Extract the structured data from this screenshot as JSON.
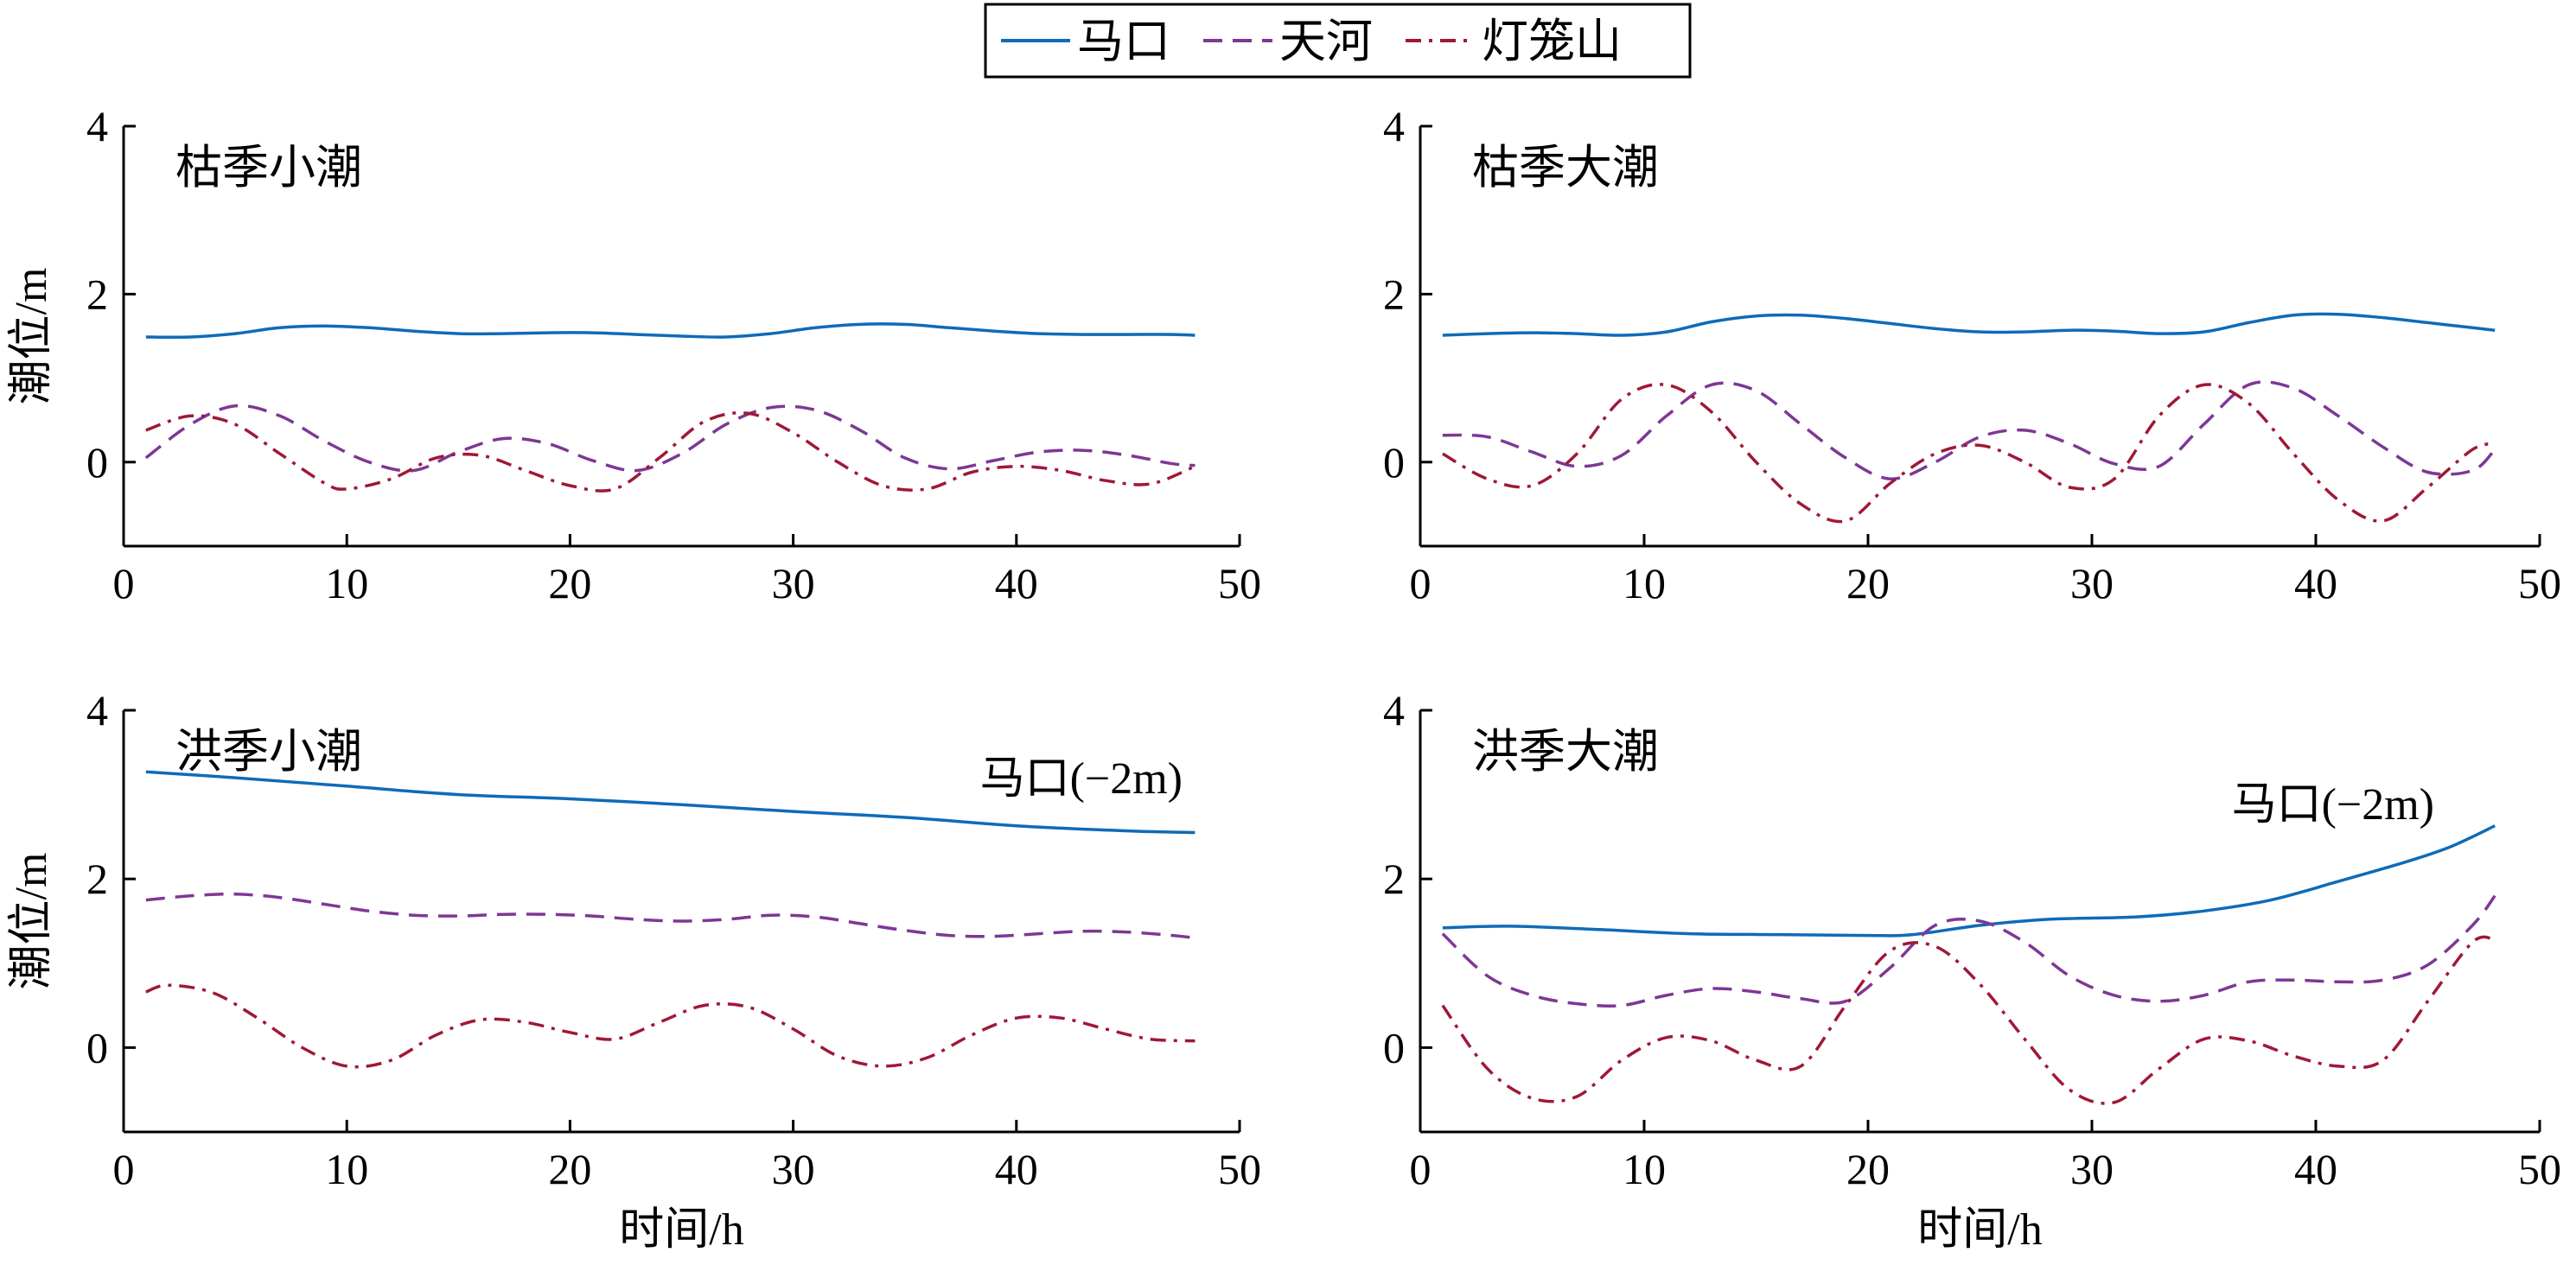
{
  "legend": {
    "items": [
      {
        "label": "马口",
        "color": "#0e6bb8",
        "dash": "solid"
      },
      {
        "label": "天河",
        "color": "#7e3795",
        "dash": "dashed"
      },
      {
        "label": "灯笼山",
        "color": "#a01836",
        "dash": "dashdot"
      }
    ]
  },
  "chart_data": [
    {
      "type": "line",
      "title": "枯季小潮",
      "xlabel": "",
      "ylabel": "潮位/m",
      "xlim": [
        0,
        50
      ],
      "ylim": [
        -1,
        4
      ],
      "xticks": [
        0,
        10,
        20,
        30,
        40,
        50
      ],
      "yticks": [
        0,
        2,
        4
      ],
      "annotation": "",
      "series": [
        {
          "name": "马口",
          "x": [
            1,
            3,
            5,
            7,
            9,
            11,
            13,
            15,
            17,
            19,
            21,
            23,
            25,
            27,
            29,
            31,
            33,
            35,
            37,
            39,
            41,
            43,
            45,
            47,
            48
          ],
          "y": [
            1.49,
            1.49,
            1.53,
            1.6,
            1.62,
            1.6,
            1.56,
            1.53,
            1.53,
            1.54,
            1.54,
            1.52,
            1.5,
            1.49,
            1.53,
            1.6,
            1.64,
            1.64,
            1.6,
            1.56,
            1.53,
            1.52,
            1.52,
            1.52,
            1.51
          ]
        },
        {
          "name": "天河",
          "x": [
            1,
            3,
            5,
            7,
            9,
            11,
            13,
            15,
            17,
            19,
            21,
            23,
            25,
            27,
            29,
            31,
            33,
            35,
            37,
            39,
            41,
            43,
            45,
            47,
            48
          ],
          "y": [
            0.05,
            0.45,
            0.67,
            0.55,
            0.25,
            0.0,
            -0.1,
            0.12,
            0.28,
            0.22,
            0.02,
            -0.1,
            0.1,
            0.45,
            0.65,
            0.62,
            0.38,
            0.05,
            -0.08,
            0.02,
            0.12,
            0.14,
            0.08,
            -0.02,
            -0.04
          ]
        },
        {
          "name": "灯笼山",
          "x": [
            1,
            3,
            5,
            7,
            9,
            10,
            12,
            14,
            16,
            18,
            20,
            22,
            24,
            26,
            28,
            30,
            32,
            34,
            36,
            38,
            40,
            42,
            44,
            46,
            48
          ],
          "y": [
            0.38,
            0.55,
            0.45,
            0.1,
            -0.25,
            -0.32,
            -0.2,
            0.05,
            0.08,
            -0.1,
            -0.28,
            -0.32,
            0.05,
            0.48,
            0.58,
            0.35,
            0.0,
            -0.28,
            -0.32,
            -0.12,
            -0.05,
            -0.1,
            -0.22,
            -0.26,
            -0.05
          ]
        }
      ]
    },
    {
      "type": "line",
      "title": "枯季大潮",
      "xlabel": "",
      "ylabel": "",
      "xlim": [
        0,
        50
      ],
      "ylim": [
        -1,
        4
      ],
      "xticks": [
        0,
        10,
        20,
        30,
        40,
        50
      ],
      "yticks": [
        0,
        2,
        4
      ],
      "annotation": "",
      "series": [
        {
          "name": "马口",
          "x": [
            1,
            3,
            5,
            7,
            9,
            11,
            13,
            15,
            17,
            19,
            21,
            23,
            25,
            27,
            29,
            31,
            33,
            35,
            37,
            39,
            41,
            43,
            45,
            47,
            48
          ],
          "y": [
            1.51,
            1.53,
            1.54,
            1.53,
            1.51,
            1.55,
            1.67,
            1.74,
            1.75,
            1.71,
            1.65,
            1.59,
            1.55,
            1.55,
            1.57,
            1.56,
            1.53,
            1.55,
            1.66,
            1.75,
            1.76,
            1.72,
            1.66,
            1.6,
            1.57
          ]
        },
        {
          "name": "天河",
          "x": [
            1,
            3,
            5,
            7,
            9,
            11,
            13,
            15,
            17,
            19,
            21,
            23,
            25,
            27,
            29,
            31,
            33,
            35,
            37,
            39,
            41,
            43,
            45,
            47,
            48
          ],
          "y": [
            0.32,
            0.3,
            0.12,
            -0.05,
            0.08,
            0.55,
            0.92,
            0.85,
            0.45,
            0.05,
            -0.2,
            0.0,
            0.3,
            0.38,
            0.22,
            -0.02,
            -0.05,
            0.45,
            0.92,
            0.88,
            0.55,
            0.18,
            -0.12,
            -0.1,
            0.15
          ]
        },
        {
          "name": "灯笼山",
          "x": [
            1,
            3,
            5,
            7,
            9,
            11,
            13,
            15,
            17,
            19,
            21,
            23,
            25,
            27,
            29,
            31,
            33,
            35,
            37,
            39,
            41,
            43,
            45,
            47,
            48
          ],
          "y": [
            0.1,
            -0.2,
            -0.28,
            0.1,
            0.75,
            0.92,
            0.6,
            0.0,
            -0.5,
            -0.7,
            -0.25,
            0.1,
            0.2,
            0.0,
            -0.3,
            -0.2,
            0.55,
            0.92,
            0.7,
            0.1,
            -0.45,
            -0.7,
            -0.3,
            0.15,
            0.22
          ]
        }
      ]
    },
    {
      "type": "line",
      "title": "洪季小潮",
      "xlabel": "时间/h",
      "ylabel": "潮位/m",
      "xlim": [
        0,
        50
      ],
      "ylim": [
        -1,
        4
      ],
      "xticks": [
        0,
        10,
        20,
        30,
        40,
        50
      ],
      "yticks": [
        0,
        2,
        4
      ],
      "annotation": "马口(−2m)",
      "series": [
        {
          "name": "马口",
          "x": [
            1,
            5,
            10,
            15,
            20,
            25,
            30,
            35,
            40,
            45,
            48
          ],
          "y": [
            3.27,
            3.2,
            3.1,
            3.0,
            2.95,
            2.88,
            2.8,
            2.73,
            2.63,
            2.57,
            2.55
          ]
        },
        {
          "name": "天河",
          "x": [
            1,
            3,
            5,
            7,
            9,
            11,
            13,
            15,
            17,
            19,
            21,
            23,
            25,
            27,
            29,
            31,
            33,
            35,
            37,
            39,
            41,
            43,
            45,
            47,
            48
          ],
          "y": [
            1.75,
            1.8,
            1.82,
            1.78,
            1.7,
            1.62,
            1.57,
            1.56,
            1.58,
            1.58,
            1.56,
            1.52,
            1.5,
            1.52,
            1.57,
            1.55,
            1.47,
            1.39,
            1.33,
            1.32,
            1.35,
            1.38,
            1.37,
            1.33,
            1.3
          ]
        },
        {
          "name": "灯笼山",
          "x": [
            1,
            2,
            4,
            6,
            8,
            10,
            12,
            14,
            16,
            18,
            20,
            22,
            24,
            26,
            28,
            30,
            32,
            34,
            36,
            38,
            40,
            42,
            44,
            46,
            48
          ],
          "y": [
            0.66,
            0.74,
            0.65,
            0.35,
            0.0,
            -0.22,
            -0.15,
            0.15,
            0.33,
            0.3,
            0.18,
            0.1,
            0.3,
            0.5,
            0.48,
            0.22,
            -0.1,
            -0.22,
            -0.12,
            0.15,
            0.35,
            0.35,
            0.22,
            0.1,
            0.08
          ]
        }
      ]
    },
    {
      "type": "line",
      "title": "洪季大潮",
      "xlabel": "时间/h",
      "ylabel": "",
      "xlim": [
        0,
        50
      ],
      "ylim": [
        -1,
        4
      ],
      "xticks": [
        0,
        10,
        20,
        30,
        40,
        50
      ],
      "yticks": [
        0,
        2,
        4
      ],
      "annotation": "马口(−2m)",
      "series": [
        {
          "name": "马口",
          "x": [
            1,
            4,
            8,
            12,
            16,
            20,
            22,
            25,
            28,
            32,
            35,
            38,
            41,
            44,
            46,
            48
          ],
          "y": [
            1.42,
            1.44,
            1.4,
            1.35,
            1.34,
            1.33,
            1.34,
            1.45,
            1.52,
            1.55,
            1.62,
            1.75,
            1.97,
            2.2,
            2.38,
            2.63
          ]
        },
        {
          "name": "天河",
          "x": [
            1,
            3,
            5,
            7,
            9,
            11,
            13,
            15,
            17,
            19,
            21,
            23,
            25,
            27,
            29,
            31,
            33,
            35,
            37,
            39,
            41,
            43,
            45,
            47,
            48
          ],
          "y": [
            1.35,
            0.85,
            0.62,
            0.52,
            0.5,
            0.62,
            0.7,
            0.66,
            0.58,
            0.55,
            0.95,
            1.45,
            1.5,
            1.25,
            0.85,
            0.62,
            0.55,
            0.62,
            0.78,
            0.8,
            0.78,
            0.8,
            0.98,
            1.45,
            1.8
          ]
        },
        {
          "name": "灯笼山",
          "x": [
            1,
            3,
            5,
            7,
            9,
            11,
            13,
            15,
            17,
            19,
            21,
            23,
            25,
            27,
            29,
            31,
            33,
            35,
            37,
            39,
            41,
            43,
            45,
            47,
            48
          ],
          "y": [
            0.5,
            -0.25,
            -0.6,
            -0.58,
            -0.15,
            0.12,
            0.08,
            -0.15,
            -0.22,
            0.5,
            1.15,
            1.2,
            0.75,
            0.1,
            -0.5,
            -0.65,
            -0.25,
            0.1,
            0.08,
            -0.1,
            -0.22,
            -0.15,
            0.55,
            1.25,
            1.28
          ]
        }
      ]
    }
  ]
}
